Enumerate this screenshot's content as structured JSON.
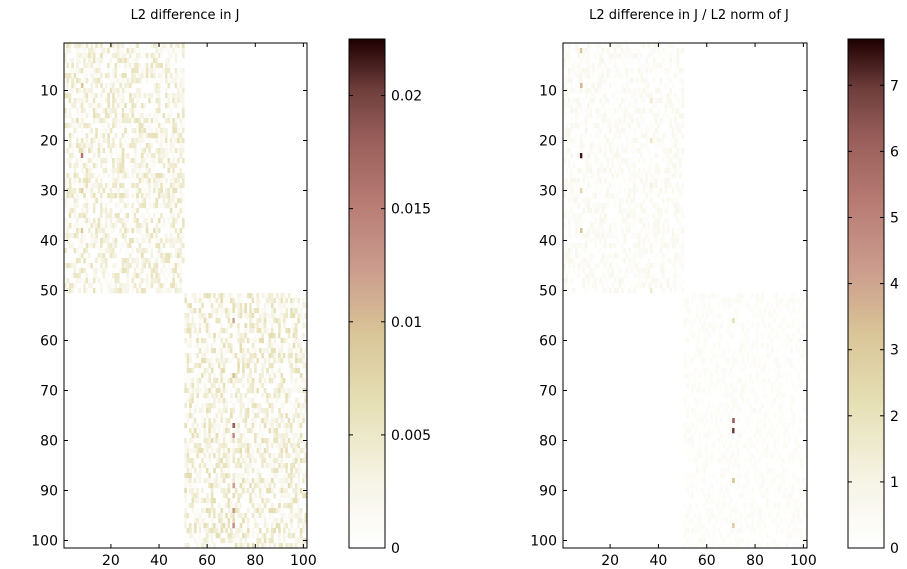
{
  "chart_data": [
    {
      "type": "heatmap",
      "title": "L2 difference in J",
      "xlabel": "",
      "ylabel": "",
      "xlim": [
        1,
        101
      ],
      "ylim": [
        1,
        101
      ],
      "y_reversed": true,
      "xticks": [
        20,
        40,
        60,
        80,
        100
      ],
      "yticks": [
        10,
        20,
        30,
        40,
        50,
        60,
        70,
        80,
        90,
        100
      ],
      "colormap": "pink (reversed)",
      "colorbar": {
        "min": 0,
        "max": 0.0225,
        "ticks": [
          0,
          0.005,
          0.01,
          0.015,
          0.02
        ],
        "tick_labels": [
          "0",
          "0.005",
          "0.01",
          "0.015",
          "0.02"
        ]
      },
      "blocks": [
        {
          "rows": [
            1,
            50
          ],
          "cols": [
            1,
            50
          ],
          "level": "low, typically 0-0.006"
        },
        {
          "rows": [
            51,
            101
          ],
          "cols": [
            51,
            101
          ],
          "level": "low, typically 0-0.006"
        }
      ],
      "empty_regions": [
        {
          "rows": [
            1,
            50
          ],
          "cols": [
            51,
            101
          ]
        },
        {
          "rows": [
            51,
            101
          ],
          "cols": [
            1,
            50
          ]
        }
      ],
      "notable_cells": [
        {
          "row": 23,
          "col": 8,
          "value": 0.016
        },
        {
          "row": 9,
          "col": 8,
          "value": 0.009
        },
        {
          "row": 30,
          "col": 8,
          "value": 0.008
        },
        {
          "row": 38,
          "col": 8,
          "value": 0.009
        },
        {
          "row": 56,
          "col": 71,
          "value": 0.012
        },
        {
          "row": 67,
          "col": 71,
          "value": 0.01
        },
        {
          "row": 77,
          "col": 71,
          "value": 0.018
        },
        {
          "row": 79,
          "col": 71,
          "value": 0.014
        },
        {
          "row": 89,
          "col": 71,
          "value": 0.012
        },
        {
          "row": 94,
          "col": 71,
          "value": 0.013
        },
        {
          "row": 97,
          "col": 71,
          "value": 0.014
        }
      ]
    },
    {
      "type": "heatmap",
      "title": "L2 difference in J / L2 norm of J",
      "xlabel": "",
      "ylabel": "",
      "xlim": [
        1,
        101
      ],
      "ylim": [
        1,
        101
      ],
      "y_reversed": true,
      "xticks": [
        20,
        40,
        60,
        80,
        100
      ],
      "yticks": [
        10,
        20,
        30,
        40,
        50,
        60,
        70,
        80,
        90,
        100
      ],
      "colormap": "pink (reversed)",
      "colorbar": {
        "min": 0,
        "max": 7.7,
        "ticks": [
          0,
          1,
          2,
          3,
          4,
          5,
          6,
          7
        ],
        "tick_labels": [
          "0",
          "1",
          "2",
          "3",
          "4",
          "5",
          "6",
          "7"
        ]
      },
      "blocks": [
        {
          "rows": [
            1,
            50
          ],
          "cols": [
            1,
            50
          ],
          "level": "very low, typically 0-0.8"
        },
        {
          "rows": [
            51,
            101
          ],
          "cols": [
            51,
            101
          ],
          "level": "very low, typically 0-0.5"
        }
      ],
      "empty_regions": [
        {
          "rows": [
            1,
            50
          ],
          "cols": [
            51,
            101
          ]
        },
        {
          "rows": [
            51,
            101
          ],
          "cols": [
            1,
            50
          ]
        }
      ],
      "notable_cells": [
        {
          "row": 23,
          "col": 8,
          "value": 7.4
        },
        {
          "row": 2,
          "col": 8,
          "value": 3.2
        },
        {
          "row": 9,
          "col": 8,
          "value": 3.5
        },
        {
          "row": 30,
          "col": 8,
          "value": 2.6
        },
        {
          "row": 38,
          "col": 8,
          "value": 3.3
        },
        {
          "row": 12,
          "col": 37,
          "value": 1.6
        },
        {
          "row": 20,
          "col": 37,
          "value": 1.8
        },
        {
          "row": 29,
          "col": 37,
          "value": 1.3
        },
        {
          "row": 50,
          "col": 37,
          "value": 1.5
        },
        {
          "row": 56,
          "col": 71,
          "value": 2.0
        },
        {
          "row": 76,
          "col": 71,
          "value": 6.0
        },
        {
          "row": 78,
          "col": 71,
          "value": 7.0
        },
        {
          "row": 88,
          "col": 71,
          "value": 3.2
        },
        {
          "row": 97,
          "col": 71,
          "value": 3.0
        }
      ]
    }
  ]
}
